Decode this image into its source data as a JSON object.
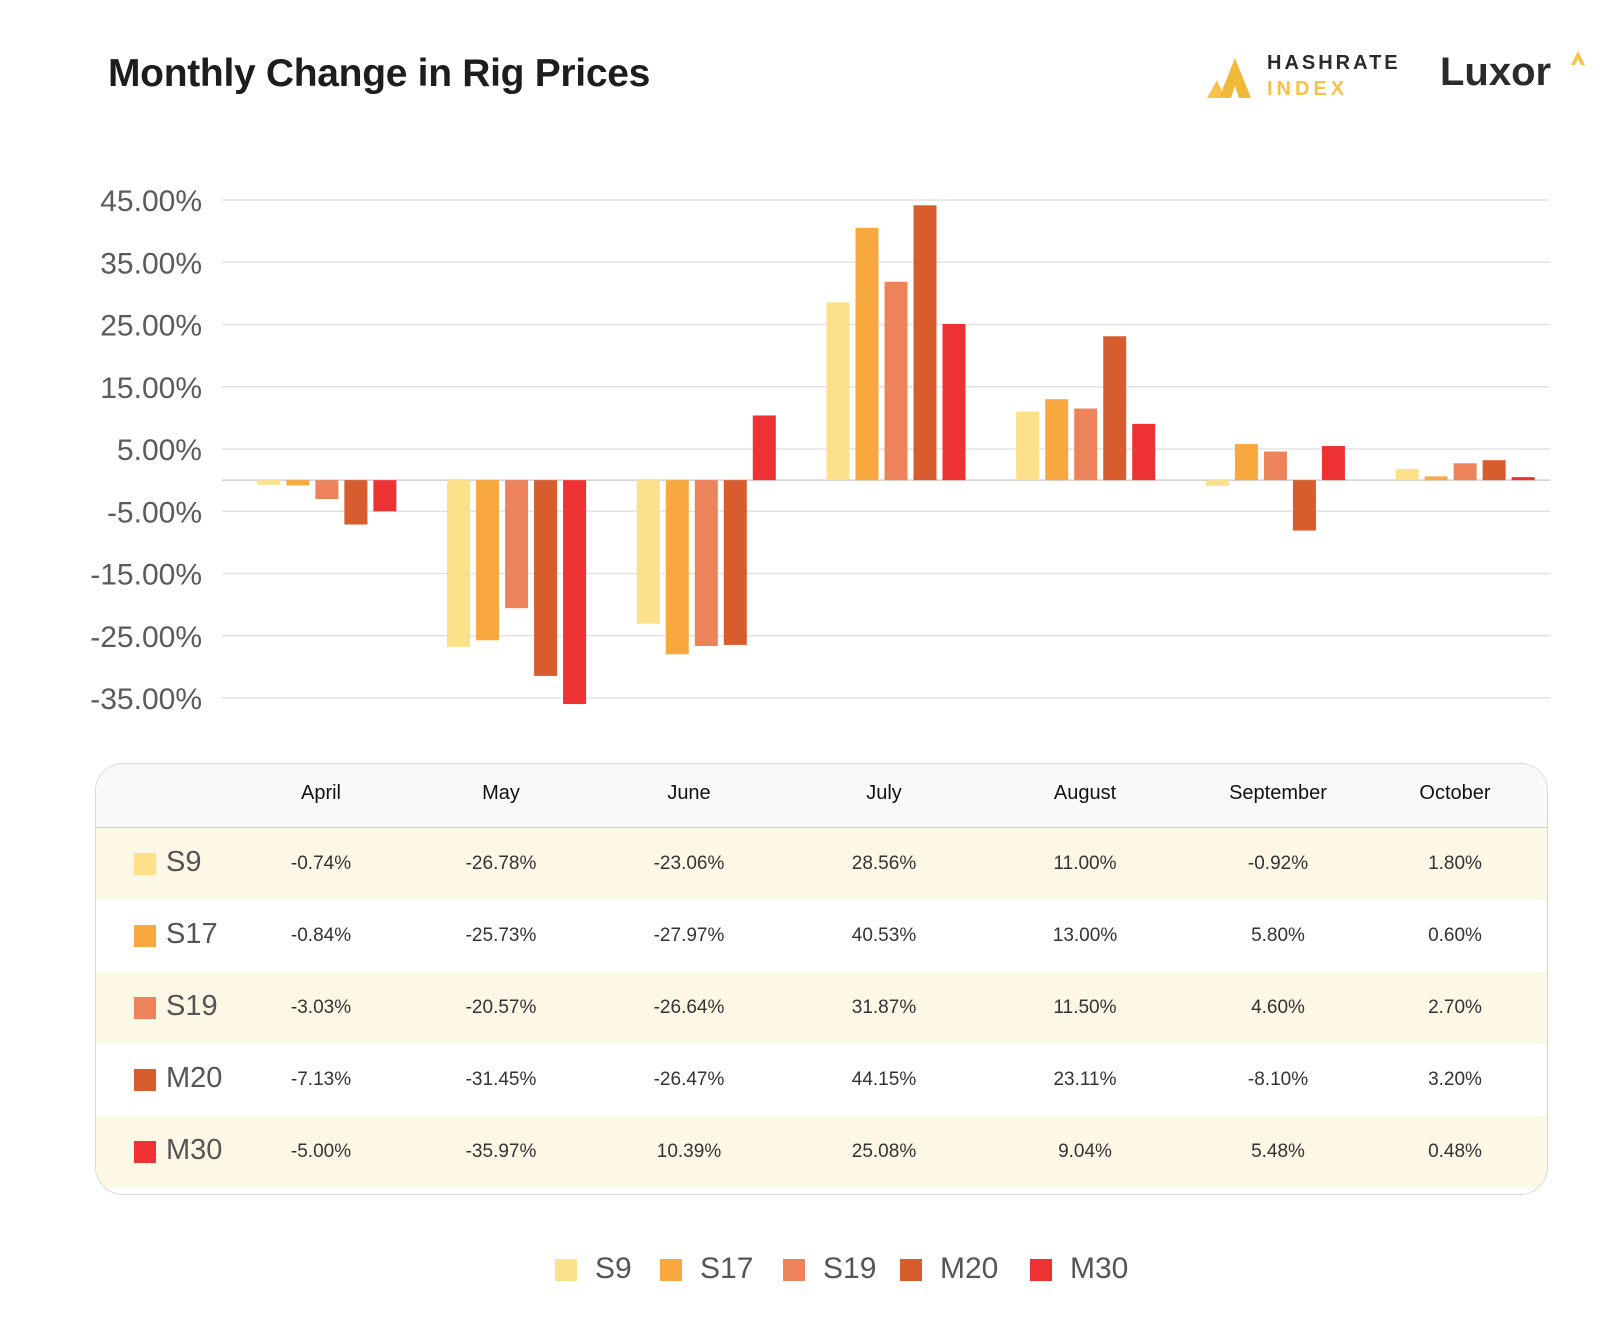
{
  "header": {
    "title": "Monthly Change in Rig Prices",
    "brand1_line1": "HASHRATE",
    "brand1_line2": "INDEX",
    "brand2": "Luxor"
  },
  "colors": {
    "S9": "#fde08a",
    "S17": "#f9a83f",
    "S19": "#ec835a",
    "M20": "#d75d2e",
    "M30": "#ee3234",
    "grid": "#e3e3e3",
    "brand_gold": "#f5c24a"
  },
  "chart_data": {
    "type": "bar",
    "title": "Monthly Change in Rig Prices",
    "categories": [
      "April",
      "May",
      "June",
      "July",
      "August",
      "September",
      "October"
    ],
    "series": [
      {
        "name": "S9",
        "values": [
          -0.74,
          -26.78,
          -23.06,
          28.56,
          11.0,
          -0.92,
          1.8
        ]
      },
      {
        "name": "S17",
        "values": [
          -0.84,
          -25.73,
          -27.97,
          40.53,
          13.0,
          5.8,
          0.6
        ]
      },
      {
        "name": "S19",
        "values": [
          -3.03,
          -20.57,
          -26.64,
          31.87,
          11.5,
          4.6,
          2.7
        ]
      },
      {
        "name": "M20",
        "values": [
          -7.13,
          -31.45,
          -26.47,
          44.15,
          23.11,
          -8.1,
          3.2
        ]
      },
      {
        "name": "M30",
        "values": [
          -5.0,
          -35.97,
          10.39,
          25.08,
          9.04,
          5.48,
          0.48
        ]
      }
    ],
    "yticks": [
      "45.00%",
      "35.00%",
      "25.00%",
      "15.00%",
      "5.00%",
      "-5.00%",
      "-15.00%",
      "-25.00%",
      "-35.00%"
    ],
    "ytick_values": [
      45,
      35,
      25,
      15,
      5,
      -5,
      -15,
      -25,
      -35
    ],
    "ylim": [
      -35,
      45
    ],
    "grid": true,
    "legend_position": "bottom-center"
  },
  "table": {
    "columns": [
      "April",
      "May",
      "June",
      "July",
      "August",
      "September",
      "October"
    ],
    "rows": [
      {
        "label": "S9",
        "cells": [
          "-0.74%",
          "-26.78%",
          "-23.06%",
          "28.56%",
          "11.00%",
          "-0.92%",
          "1.80%"
        ]
      },
      {
        "label": "S17",
        "cells": [
          "-0.84%",
          "-25.73%",
          "-27.97%",
          "40.53%",
          "13.00%",
          "5.80%",
          "0.60%"
        ]
      },
      {
        "label": "S19",
        "cells": [
          "-3.03%",
          "-20.57%",
          "-26.64%",
          "31.87%",
          "11.50%",
          "4.60%",
          "2.70%"
        ]
      },
      {
        "label": "M20",
        "cells": [
          "-7.13%",
          "-31.45%",
          "-26.47%",
          "44.15%",
          "23.11%",
          "-8.10%",
          "3.20%"
        ]
      },
      {
        "label": "M30",
        "cells": [
          "-5.00%",
          "-35.97%",
          "10.39%",
          "25.08%",
          "9.04%",
          "5.48%",
          "0.48%"
        ]
      }
    ]
  },
  "legend": {
    "items": [
      "S9",
      "S17",
      "S19",
      "M20",
      "M30"
    ]
  }
}
